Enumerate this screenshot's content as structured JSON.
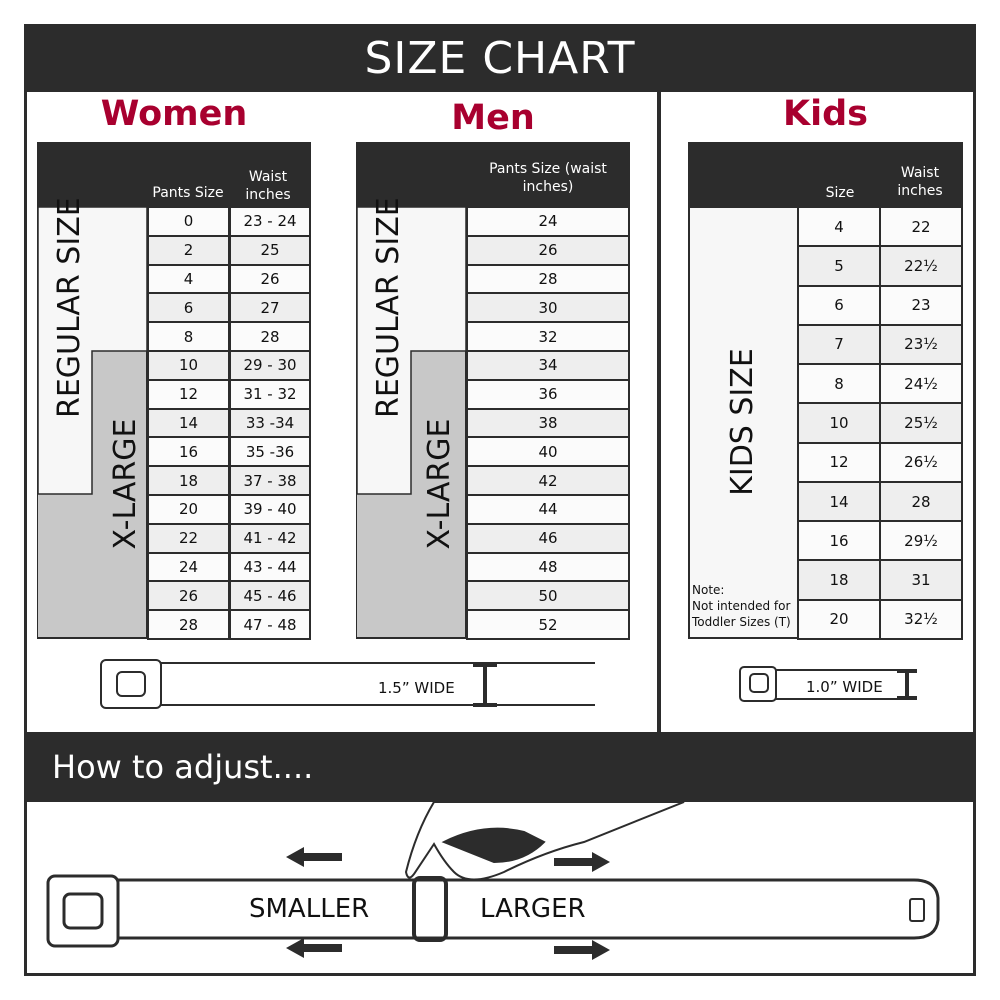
{
  "header": {
    "title": "SIZE CHART"
  },
  "colors": {
    "accent": "#a8002f",
    "dark": "#2c2c2c",
    "xlarge_gray": "#c8c8c8"
  },
  "women": {
    "title": "Women",
    "col_headers": [
      "Pants Size",
      "Waist inches"
    ],
    "regular_label": "REGULAR SIZE",
    "xlarge_label": "X-LARGE",
    "rows": [
      [
        "0",
        "23 - 24"
      ],
      [
        "2",
        "25"
      ],
      [
        "4",
        "26"
      ],
      [
        "6",
        "27"
      ],
      [
        "8",
        "28"
      ],
      [
        "10",
        "29 - 30"
      ],
      [
        "12",
        "31 - 32"
      ],
      [
        "14",
        "33 -34"
      ],
      [
        "16",
        "35 -36"
      ],
      [
        "18",
        "37 - 38"
      ],
      [
        "20",
        "39 - 40"
      ],
      [
        "22",
        "41 - 42"
      ],
      [
        "24",
        "43 - 44"
      ],
      [
        "26",
        "45 - 46"
      ],
      [
        "28",
        "47 - 48"
      ]
    ],
    "belt_width": "1.5” WIDE"
  },
  "men": {
    "title": "Men",
    "col_headers": [
      "Pants Size (waist inches)"
    ],
    "regular_label": "REGULAR SIZE",
    "xlarge_label": "X-LARGE",
    "rows": [
      [
        "24"
      ],
      [
        "26"
      ],
      [
        "28"
      ],
      [
        "30"
      ],
      [
        "32"
      ],
      [
        "34"
      ],
      [
        "36"
      ],
      [
        "38"
      ],
      [
        "40"
      ],
      [
        "42"
      ],
      [
        "44"
      ],
      [
        "46"
      ],
      [
        "48"
      ],
      [
        "50"
      ],
      [
        "52"
      ]
    ]
  },
  "kids": {
    "title": "Kids",
    "col_headers": [
      "Size",
      "Waist inches"
    ],
    "label": "KIDS SIZE",
    "note": [
      "Note:",
      "Not intended for",
      "Toddler Sizes (T)"
    ],
    "rows": [
      [
        "4",
        "22"
      ],
      [
        "5",
        "22½"
      ],
      [
        "6",
        "23"
      ],
      [
        "7",
        "23½"
      ],
      [
        "8",
        "24½"
      ],
      [
        "10",
        "25½"
      ],
      [
        "12",
        "26½"
      ],
      [
        "14",
        "28"
      ],
      [
        "16",
        "29½"
      ],
      [
        "18",
        "31"
      ],
      [
        "20",
        "32½"
      ]
    ],
    "belt_width": "1.0” WIDE"
  },
  "adjust": {
    "title": "How to adjust....",
    "smaller": "SMALLER",
    "larger": "LARGER"
  }
}
